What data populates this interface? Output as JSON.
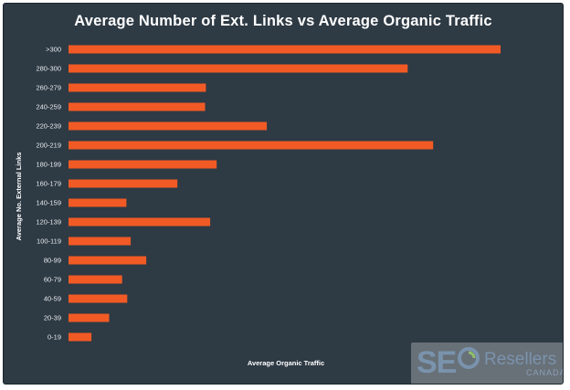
{
  "chart_data": {
    "type": "bar",
    "orientation": "horizontal",
    "title": "Average Number of Ext. Links vs Average Organic Traffic",
    "xlabel": "Average Organic Traffic",
    "ylabel": "Average No. External Links",
    "categories": [
      ">300",
      "280-300",
      "260-279",
      "240-259",
      "220-239",
      "200-219",
      "180-199",
      "160-179",
      "140-159",
      "120-139",
      "100-119",
      "80-99",
      "60-79",
      "40-59",
      "20-39",
      "0-19"
    ],
    "values": [
      100,
      78.5,
      31.8,
      31.6,
      45.9,
      84.4,
      34.3,
      25.2,
      13.4,
      32.8,
      14.4,
      18.0,
      12.4,
      13.6,
      9.4,
      5.3
    ],
    "xlim": [
      0,
      100
    ],
    "grid": false,
    "bar_color": "#f15a24",
    "background_color": "#2e3a44"
  },
  "watermark": {
    "seo": "SE",
    "brand": "Resellers",
    "country": "CANADA",
    "icon": "seo-o-swirl-icon"
  }
}
